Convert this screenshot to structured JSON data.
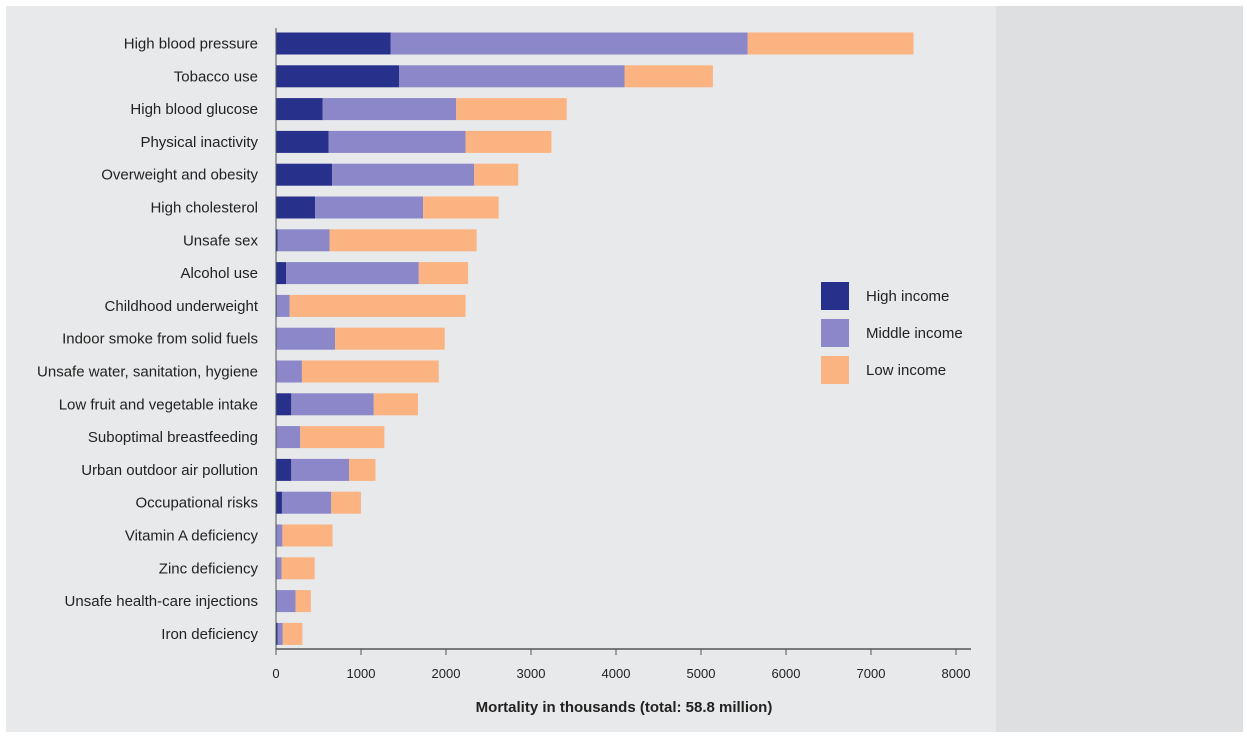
{
  "chart_data": {
    "type": "bar",
    "orientation": "horizontal",
    "stacked": true,
    "categories": [
      "High blood pressure",
      "Tobacco use",
      "High blood glucose",
      "Physical inactivity",
      "Overweight and obesity",
      "High cholesterol",
      "Unsafe sex",
      "Alcohol use",
      "Childhood underweight",
      "Indoor smoke from solid fuels",
      "Unsafe water, sanitation, hygiene",
      "Low fruit and vegetable intake",
      "Suboptimal breastfeeding",
      "Urban outdoor air pollution",
      "Occupational risks",
      "Vitamin A deficiency",
      "Zinc deficiency",
      "Unsafe health-care injections",
      "Iron deficiency"
    ],
    "series": [
      {
        "name": "High income",
        "color": "#27308a",
        "values": [
          1350,
          1450,
          550,
          620,
          660,
          460,
          20,
          120,
          10,
          5,
          5,
          180,
          5,
          180,
          70,
          5,
          5,
          10,
          20
        ]
      },
      {
        "name": "Middle income",
        "color": "#8b87c8",
        "values": [
          4200,
          2650,
          1570,
          1610,
          1670,
          1270,
          610,
          1560,
          150,
          690,
          300,
          970,
          280,
          680,
          580,
          70,
          60,
          220,
          60
        ]
      },
      {
        "name": "Low income",
        "color": "#fbb382",
        "values": [
          1950,
          1040,
          1300,
          1010,
          520,
          890,
          1730,
          580,
          2070,
          1290,
          1610,
          520,
          990,
          310,
          350,
          590,
          390,
          180,
          230
        ]
      }
    ],
    "xlabel": "Mortality in thousands (total: 58.8 million)",
    "ylabel": "",
    "xlim": [
      0,
      8000
    ],
    "xticks": [
      0,
      1000,
      2000,
      3000,
      4000,
      5000,
      6000,
      7000,
      8000
    ],
    "grid": false,
    "legend_position": "right",
    "background_color": "#e8e9eb",
    "side_panel_color": "#dedfe1"
  }
}
